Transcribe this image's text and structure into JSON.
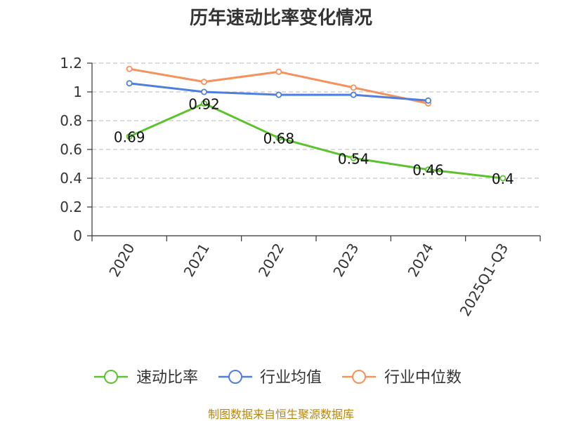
{
  "chart_data": {
    "type": "line",
    "title": "历年速动比率变化情况",
    "categories": [
      "2020",
      "2021",
      "2022",
      "2023",
      "2024",
      "2025Q1-Q3"
    ],
    "ylim": [
      0,
      1.2
    ],
    "yticks": [
      0,
      0.2,
      0.4,
      0.6,
      0.8,
      1,
      1.2
    ],
    "grid": true,
    "legend_position": "bottom",
    "series": [
      {
        "name": "速动比率",
        "color": "#5cc22e",
        "values": [
          0.69,
          0.92,
          0.68,
          0.54,
          0.46,
          0.4
        ],
        "labels": [
          "0.69",
          "0.92",
          "0.68",
          "0.54",
          "0.46",
          "0.4"
        ]
      },
      {
        "name": "行业均值",
        "color": "#4f7fdc",
        "values": [
          1.06,
          1.0,
          0.98,
          0.98,
          0.94,
          null
        ]
      },
      {
        "name": "行业中位数",
        "color": "#f5915c",
        "values": [
          1.16,
          1.07,
          1.14,
          1.03,
          0.92,
          null
        ]
      }
    ]
  },
  "footer": {
    "source": "制图数据来自恒生聚源数据库"
  }
}
